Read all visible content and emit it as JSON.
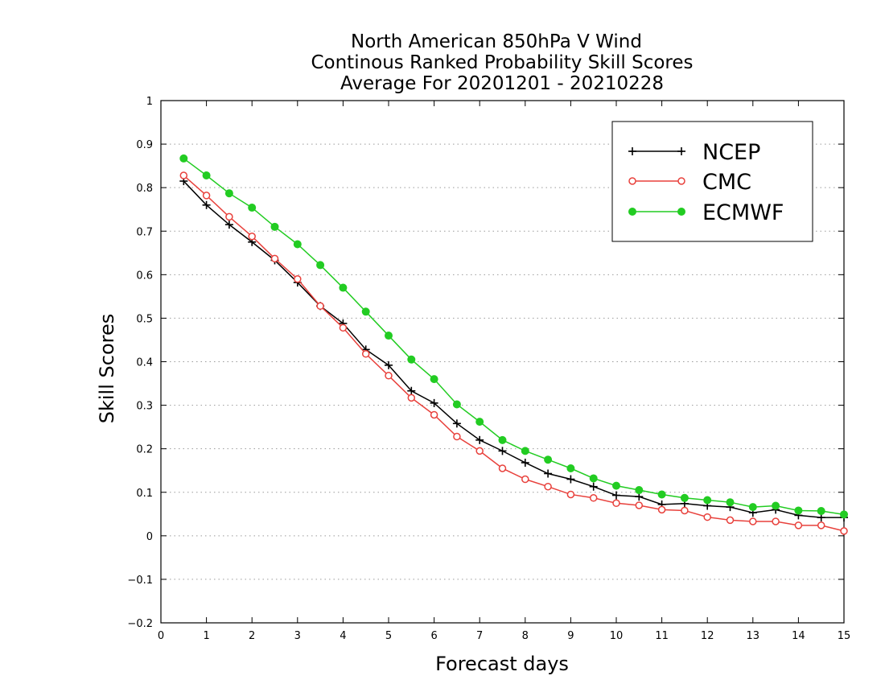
{
  "chart_data": {
    "type": "line",
    "title": [
      "North American 850hPa V Wind",
      "Continous Ranked Probability Skill Scores",
      "Average For 20201201 - 20210228"
    ],
    "xlabel": "Forecast days",
    "ylabel": "Skill Scores",
    "xlim": [
      0,
      15
    ],
    "ylim": [
      -0.2,
      1
    ],
    "xticks": [
      "0",
      "1",
      "2",
      "3",
      "4",
      "5",
      "6",
      "7",
      "8",
      "9",
      "10",
      "11",
      "12",
      "13",
      "14",
      "15"
    ],
    "yticks": [
      "−0.2",
      "−0.1",
      "0",
      "0.1",
      "0.2",
      "0.3",
      "0.4",
      "0.5",
      "0.6",
      "0.7",
      "0.8",
      "0.9",
      "1"
    ],
    "grid": "horizontal dotted",
    "legend_position": "top-right",
    "x": [
      0.5,
      1,
      1.5,
      2,
      2.5,
      3,
      3.5,
      4,
      4.5,
      5,
      5.5,
      6,
      6.5,
      7,
      7.5,
      8,
      8.5,
      9,
      9.5,
      10,
      10.5,
      11,
      11.5,
      12,
      12.5,
      13,
      13.5,
      14,
      14.5,
      15
    ],
    "series": [
      {
        "name": "NCEP",
        "color": "#000000",
        "marker": "plus",
        "values": [
          0.815,
          0.76,
          0.715,
          0.675,
          0.633,
          0.582,
          0.528,
          0.488,
          0.428,
          0.392,
          0.333,
          0.305,
          0.258,
          0.22,
          0.195,
          0.168,
          0.143,
          0.13,
          0.113,
          0.093,
          0.09,
          0.072,
          0.074,
          0.069,
          0.066,
          0.053,
          0.06,
          0.047,
          0.042,
          0.042
        ]
      },
      {
        "name": "CMC",
        "color": "#e8413c",
        "marker": "open-circle",
        "values": [
          0.828,
          0.782,
          0.733,
          0.688,
          0.637,
          0.59,
          0.528,
          0.478,
          0.418,
          0.368,
          0.317,
          0.278,
          0.228,
          0.195,
          0.155,
          0.13,
          0.113,
          0.095,
          0.087,
          0.075,
          0.07,
          0.06,
          0.058,
          0.043,
          0.036,
          0.033,
          0.033,
          0.024,
          0.024,
          0.011
        ]
      },
      {
        "name": "ECMWF",
        "color": "#22cc22",
        "marker": "filled-circle",
        "values": [
          0.867,
          0.828,
          0.787,
          0.754,
          0.71,
          0.67,
          0.622,
          0.57,
          0.515,
          0.46,
          0.405,
          0.36,
          0.302,
          0.262,
          0.22,
          0.195,
          0.175,
          0.155,
          0.132,
          0.115,
          0.105,
          0.095,
          0.087,
          0.082,
          0.077,
          0.066,
          0.069,
          0.058,
          0.057,
          0.049
        ]
      }
    ]
  }
}
